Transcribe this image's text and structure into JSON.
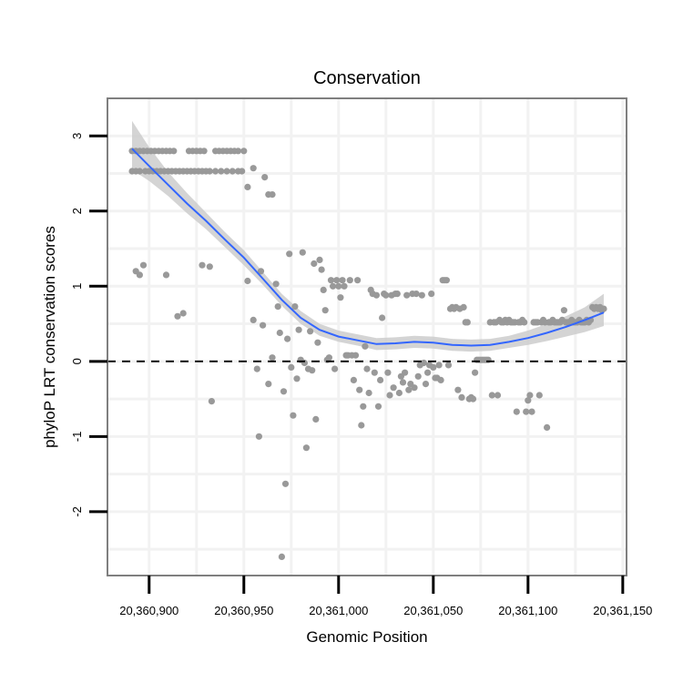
{
  "colors": {
    "points": "#999999",
    "smooth_line": "#3366ff",
    "ribbon": "#cccccc",
    "grid": "#f2f2f2",
    "panel_border": "#7f7f7f",
    "reference_line": "#000000"
  },
  "chart_data": {
    "type": "scatter",
    "title": "Conservation",
    "xlabel": "Genomic Position",
    "ylabel": "phyloP LRT conservation scores",
    "xlim": [
      20360878,
      20361152
    ],
    "ylim": [
      -2.85,
      3.5
    ],
    "x_ticks": [
      20360900,
      20360950,
      20361000,
      20361050,
      20361100,
      20361150
    ],
    "x_tick_labels": [
      "20,360,900",
      "20,360,950",
      "20,361,000",
      "20,361,050",
      "20,361,100",
      "20,361,150"
    ],
    "y_ticks": [
      -2,
      -1,
      0,
      1,
      2,
      3
    ],
    "y_tick_labels": [
      "-2",
      "-1",
      "0",
      "1",
      "2",
      "3"
    ],
    "reference_line": {
      "y": 0,
      "style": "dashed"
    },
    "smooth": {
      "x": [
        20360891,
        20360900,
        20360910,
        20360920,
        20360930,
        20360940,
        20360950,
        20360960,
        20360970,
        20360980,
        20360990,
        20361000,
        20361010,
        20361020,
        20361030,
        20361040,
        20361050,
        20361060,
        20361070,
        20361080,
        20361090,
        20361100,
        20361110,
        20361120,
        20361130,
        20361140
      ],
      "y": [
        2.83,
        2.6,
        2.35,
        2.1,
        1.87,
        1.62,
        1.38,
        1.1,
        0.82,
        0.58,
        0.42,
        0.33,
        0.28,
        0.23,
        0.24,
        0.26,
        0.25,
        0.22,
        0.21,
        0.22,
        0.26,
        0.31,
        0.38,
        0.46,
        0.55,
        0.65
      ],
      "lower": [
        2.55,
        2.4,
        2.2,
        1.97,
        1.76,
        1.52,
        1.28,
        1.02,
        0.74,
        0.5,
        0.34,
        0.26,
        0.21,
        0.15,
        0.16,
        0.18,
        0.17,
        0.14,
        0.13,
        0.14,
        0.18,
        0.22,
        0.27,
        0.33,
        0.39,
        0.47
      ],
      "upper": [
        3.2,
        2.85,
        2.52,
        2.24,
        1.98,
        1.72,
        1.48,
        1.19,
        0.9,
        0.67,
        0.5,
        0.41,
        0.36,
        0.31,
        0.32,
        0.34,
        0.33,
        0.3,
        0.29,
        0.3,
        0.34,
        0.41,
        0.5,
        0.6,
        0.72,
        0.9
      ]
    },
    "points": [
      [
        20360891,
        2.8
      ],
      [
        20360893,
        2.8
      ],
      [
        20360895,
        2.8
      ],
      [
        20360897,
        2.8
      ],
      [
        20360899,
        2.8
      ],
      [
        20360901,
        2.8
      ],
      [
        20360903,
        2.8
      ],
      [
        20360905,
        2.8
      ],
      [
        20360907,
        2.8
      ],
      [
        20360909,
        2.8
      ],
      [
        20360911,
        2.8
      ],
      [
        20360913,
        2.8
      ],
      [
        20360921,
        2.8
      ],
      [
        20360923,
        2.8
      ],
      [
        20360925,
        2.8
      ],
      [
        20360927,
        2.8
      ],
      [
        20360929,
        2.8
      ],
      [
        20360935,
        2.8
      ],
      [
        20360937,
        2.8
      ],
      [
        20360939,
        2.8
      ],
      [
        20360941,
        2.8
      ],
      [
        20360943,
        2.8
      ],
      [
        20360945,
        2.8
      ],
      [
        20360947,
        2.8
      ],
      [
        20360950,
        2.8
      ],
      [
        20360891,
        2.53
      ],
      [
        20360893,
        2.53
      ],
      [
        20360895,
        2.53
      ],
      [
        20360898,
        2.53
      ],
      [
        20360900,
        2.53
      ],
      [
        20360902,
        2.53
      ],
      [
        20360904,
        2.53
      ],
      [
        20360906,
        2.53
      ],
      [
        20360908,
        2.53
      ],
      [
        20360910,
        2.53
      ],
      [
        20360912,
        2.53
      ],
      [
        20360914,
        2.53
      ],
      [
        20360916,
        2.53
      ],
      [
        20360918,
        2.53
      ],
      [
        20360920,
        2.53
      ],
      [
        20360922,
        2.53
      ],
      [
        20360924,
        2.53
      ],
      [
        20360926,
        2.53
      ],
      [
        20360928,
        2.53
      ],
      [
        20360930,
        2.53
      ],
      [
        20360932,
        2.53
      ],
      [
        20360935,
        2.53
      ],
      [
        20360938,
        2.53
      ],
      [
        20360941,
        2.53
      ],
      [
        20360944,
        2.53
      ],
      [
        20360947,
        2.53
      ],
      [
        20360949,
        2.53
      ],
      [
        20360952,
        2.32
      ],
      [
        20360955,
        2.57
      ],
      [
        20360961,
        2.45
      ],
      [
        20360963,
        2.22
      ],
      [
        20360965,
        2.22
      ],
      [
        20360893,
        1.2
      ],
      [
        20360895,
        1.15
      ],
      [
        20360897,
        1.28
      ],
      [
        20360909,
        1.15
      ],
      [
        20360915,
        0.6
      ],
      [
        20360918,
        0.64
      ],
      [
        20360928,
        1.28
      ],
      [
        20360932,
        1.26
      ],
      [
        20360933,
        -0.53
      ],
      [
        20360952,
        1.07
      ],
      [
        20360955,
        0.55
      ],
      [
        20360957,
        -0.1
      ],
      [
        20360958,
        -1.0
      ],
      [
        20360959,
        1.2
      ],
      [
        20360960,
        0.48
      ],
      [
        20360963,
        -0.3
      ],
      [
        20360965,
        0.05
      ],
      [
        20360967,
        1.03
      ],
      [
        20360968,
        0.73
      ],
      [
        20360969,
        0.38
      ],
      [
        20360970,
        -2.6
      ],
      [
        20360971,
        -0.4
      ],
      [
        20360972,
        -1.63
      ],
      [
        20360973,
        0.3
      ],
      [
        20360974,
        1.43
      ],
      [
        20360975,
        -0.08
      ],
      [
        20360976,
        -0.72
      ],
      [
        20360977,
        0.73
      ],
      [
        20360978,
        -0.23
      ],
      [
        20360979,
        0.42
      ],
      [
        20360980,
        0.02
      ],
      [
        20360981,
        1.45
      ],
      [
        20360982,
        -0.02
      ],
      [
        20360983,
        -1.15
      ],
      [
        20360984,
        -0.1
      ],
      [
        20360985,
        0.4
      ],
      [
        20360986,
        -0.12
      ],
      [
        20360987,
        1.3
      ],
      [
        20360988,
        -0.77
      ],
      [
        20360989,
        0.25
      ],
      [
        20360990,
        1.35
      ],
      [
        20360991,
        1.22
      ],
      [
        20360992,
        0.95
      ],
      [
        20360993,
        0.68
      ],
      [
        20360994,
        0.02
      ],
      [
        20360995,
        0.05
      ],
      [
        20360996,
        1.08
      ],
      [
        20360997,
        1.0
      ],
      [
        20360998,
        -0.1
      ],
      [
        20360999,
        1.08
      ],
      [
        20361000,
        1.0
      ],
      [
        20361001,
        0.85
      ],
      [
        20361002,
        1.08
      ],
      [
        20361003,
        1.0
      ],
      [
        20361004,
        0.08
      ],
      [
        20361005,
        0.08
      ],
      [
        20361006,
        1.08
      ],
      [
        20361007,
        0.08
      ],
      [
        20361008,
        -0.25
      ],
      [
        20361009,
        0.08
      ],
      [
        20361010,
        1.08
      ],
      [
        20361011,
        -0.38
      ],
      [
        20361012,
        -0.85
      ],
      [
        20361013,
        -0.6
      ],
      [
        20361014,
        0.2
      ],
      [
        20361015,
        -0.1
      ],
      [
        20361016,
        -0.42
      ],
      [
        20361017,
        0.95
      ],
      [
        20361018,
        0.9
      ],
      [
        20361019,
        -0.15
      ],
      [
        20361020,
        0.88
      ],
      [
        20361021,
        -0.6
      ],
      [
        20361022,
        -0.25
      ],
      [
        20361023,
        0.58
      ],
      [
        20361024,
        0.9
      ],
      [
        20361025,
        0.88
      ],
      [
        20361026,
        -0.15
      ],
      [
        20361027,
        -0.45
      ],
      [
        20361028,
        0.88
      ],
      [
        20361029,
        -0.35
      ],
      [
        20361030,
        0.9
      ],
      [
        20361031,
        0.9
      ],
      [
        20361032,
        -0.42
      ],
      [
        20361033,
        -0.2
      ],
      [
        20361034,
        -0.28
      ],
      [
        20361035,
        -0.15
      ],
      [
        20361036,
        0.88
      ],
      [
        20361037,
        -0.38
      ],
      [
        20361038,
        -0.3
      ],
      [
        20361039,
        0.9
      ],
      [
        20361040,
        -0.35
      ],
      [
        20361041,
        0.9
      ],
      [
        20361042,
        -0.2
      ],
      [
        20361043,
        -0.05
      ],
      [
        20361044,
        0.88
      ],
      [
        20361045,
        -0.02
      ],
      [
        20361046,
        -0.3
      ],
      [
        20361047,
        -0.15
      ],
      [
        20361048,
        -0.05
      ],
      [
        20361049,
        0.9
      ],
      [
        20361050,
        -0.08
      ],
      [
        20361051,
        -0.22
      ],
      [
        20361052,
        -0.22
      ],
      [
        20361053,
        -0.05
      ],
      [
        20361054,
        -0.25
      ],
      [
        20361055,
        1.08
      ],
      [
        20361056,
        1.08
      ],
      [
        20361057,
        1.08
      ],
      [
        20361058,
        -0.05
      ],
      [
        20361059,
        0.7
      ],
      [
        20361060,
        0.72
      ],
      [
        20361061,
        0.7
      ],
      [
        20361062,
        0.72
      ],
      [
        20361063,
        -0.38
      ],
      [
        20361064,
        0.7
      ],
      [
        20361065,
        -0.48
      ],
      [
        20361066,
        0.72
      ],
      [
        20361067,
        0.52
      ],
      [
        20361068,
        0.52
      ],
      [
        20361069,
        -0.5
      ],
      [
        20361070,
        -0.48
      ],
      [
        20361071,
        -0.5
      ],
      [
        20361072,
        -0.15
      ],
      [
        20361073,
        0.02
      ],
      [
        20361074,
        0.02
      ],
      [
        20361075,
        0.02
      ],
      [
        20361076,
        0.02
      ],
      [
        20361077,
        0.02
      ],
      [
        20361078,
        0.02
      ],
      [
        20361079,
        0.02
      ],
      [
        20361080,
        0.52
      ],
      [
        20361081,
        -0.45
      ],
      [
        20361082,
        0.52
      ],
      [
        20361083,
        0.52
      ],
      [
        20361084,
        -0.45
      ],
      [
        20361085,
        0.55
      ],
      [
        20361086,
        0.52
      ],
      [
        20361087,
        0.52
      ],
      [
        20361088,
        0.55
      ],
      [
        20361089,
        0.52
      ],
      [
        20361090,
        0.55
      ],
      [
        20361091,
        0.52
      ],
      [
        20361092,
        0.52
      ],
      [
        20361093,
        0.52
      ],
      [
        20361094,
        -0.67
      ],
      [
        20361095,
        0.52
      ],
      [
        20361096,
        0.52
      ],
      [
        20361097,
        0.55
      ],
      [
        20361098,
        0.52
      ],
      [
        20361099,
        -0.67
      ],
      [
        20361100,
        -0.52
      ],
      [
        20361101,
        -0.45
      ],
      [
        20361102,
        -0.67
      ],
      [
        20361103,
        0.52
      ],
      [
        20361104,
        0.52
      ],
      [
        20361105,
        0.52
      ],
      [
        20361106,
        -0.45
      ],
      [
        20361107,
        0.52
      ],
      [
        20361108,
        0.55
      ],
      [
        20361109,
        0.52
      ],
      [
        20361110,
        -0.88
      ],
      [
        20361111,
        0.52
      ],
      [
        20361112,
        0.52
      ],
      [
        20361113,
        0.55
      ],
      [
        20361114,
        0.52
      ],
      [
        20361115,
        0.52
      ],
      [
        20361116,
        0.52
      ],
      [
        20361117,
        0.52
      ],
      [
        20361118,
        0.55
      ],
      [
        20361119,
        0.68
      ],
      [
        20361120,
        0.52
      ],
      [
        20361121,
        0.52
      ],
      [
        20361122,
        0.52
      ],
      [
        20361123,
        0.55
      ],
      [
        20361124,
        0.52
      ],
      [
        20361125,
        0.52
      ],
      [
        20361126,
        0.52
      ],
      [
        20361127,
        0.55
      ],
      [
        20361128,
        0.52
      ],
      [
        20361129,
        0.52
      ],
      [
        20361130,
        0.52
      ],
      [
        20361131,
        0.55
      ],
      [
        20361132,
        0.52
      ],
      [
        20361133,
        0.55
      ],
      [
        20361134,
        0.72
      ],
      [
        20361135,
        0.7
      ],
      [
        20361136,
        0.72
      ],
      [
        20361137,
        0.7
      ],
      [
        20361138,
        0.72
      ],
      [
        20361139,
        0.68
      ],
      [
        20361140,
        0.7
      ]
    ]
  }
}
